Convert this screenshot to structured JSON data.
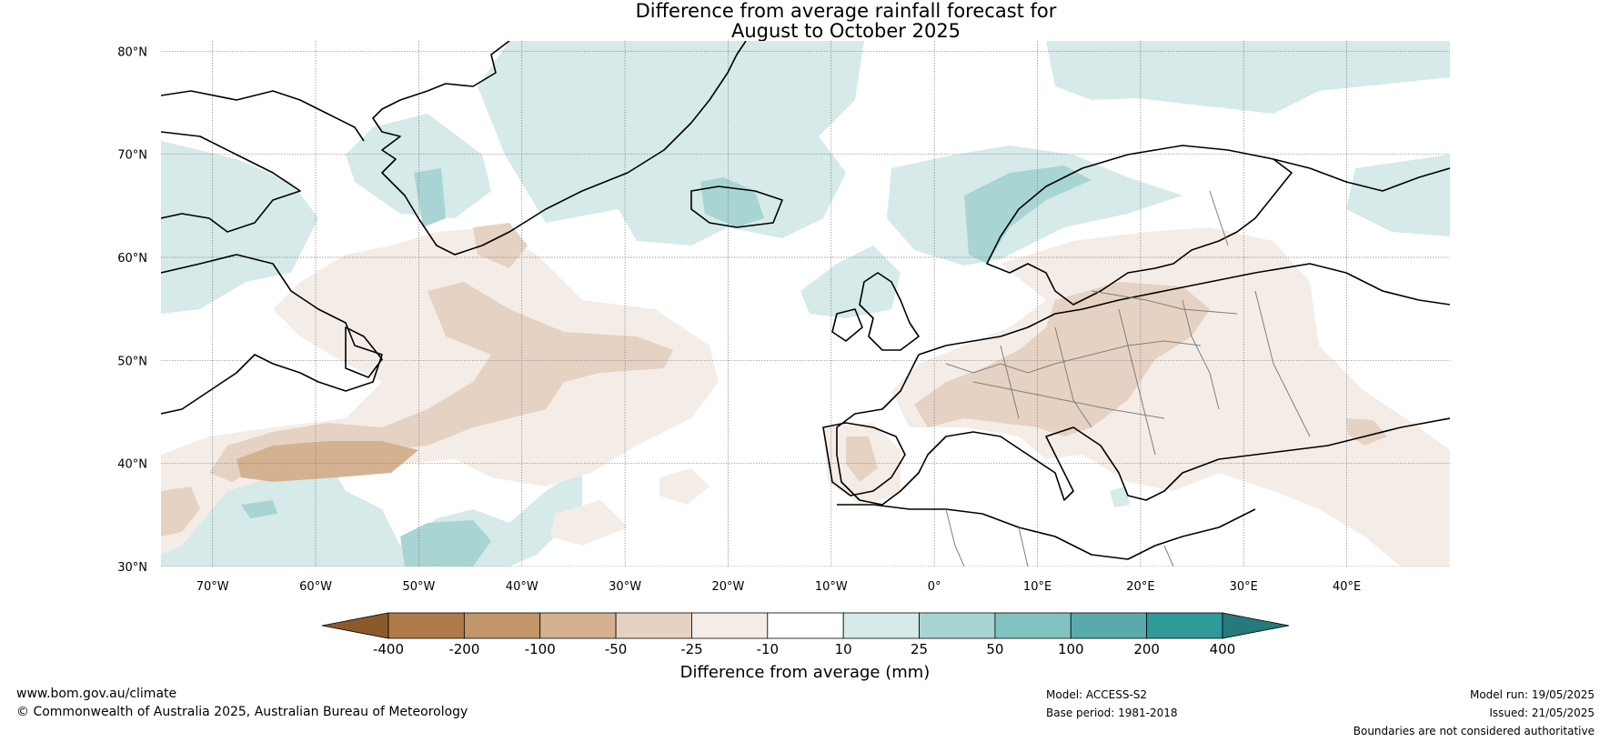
{
  "title": {
    "line1": "Difference from average rainfall forecast for",
    "line2": "August to October 2025"
  },
  "map": {
    "lat_labels": [
      "80°N",
      "70°N",
      "60°N",
      "50°N",
      "40°N",
      "30°N"
    ],
    "lon_labels": [
      "70°W",
      "60°W",
      "50°W",
      "40°W",
      "30°W",
      "20°W",
      "10°W",
      "0°",
      "10°E",
      "20°E",
      "30°E",
      "40°E"
    ],
    "lat_values": [
      80,
      70,
      60,
      50,
      40,
      30
    ],
    "lon_values": [
      -70,
      -60,
      -50,
      -40,
      -30,
      -20,
      -10,
      0,
      10,
      20,
      30,
      40
    ],
    "extent": {
      "lon_min": -75,
      "lon_max": 50,
      "lat_min": 30,
      "lat_max": 81
    }
  },
  "legend": {
    "title": "Difference from average (mm)",
    "tick_labels": [
      "-400",
      "-200",
      "-100",
      "-50",
      "-25",
      "-10",
      "10",
      "25",
      "50",
      "100",
      "200",
      "400"
    ],
    "colors": [
      "#8b5a2b",
      "#b07a48",
      "#c39669",
      "#d4b291",
      "#e6d2c2",
      "#f4ede7",
      "#ffffff",
      "#d5eae9",
      "#a8d5d4",
      "#80c3c0",
      "#59abab",
      "#30999a",
      "#267a7b"
    ]
  },
  "footer": {
    "website": "www.bom.gov.au/climate",
    "copyright": "© Commonwealth of Australia 2025, Australian Bureau of Meteorology",
    "model": "Model: ACCESS-S2",
    "base_period": "Base period: 1981-2018",
    "model_run": "Model run: 19/05/2025",
    "issued": "Issued: 21/05/2025",
    "disclaimer": "Boundaries are not considered authoritative"
  }
}
